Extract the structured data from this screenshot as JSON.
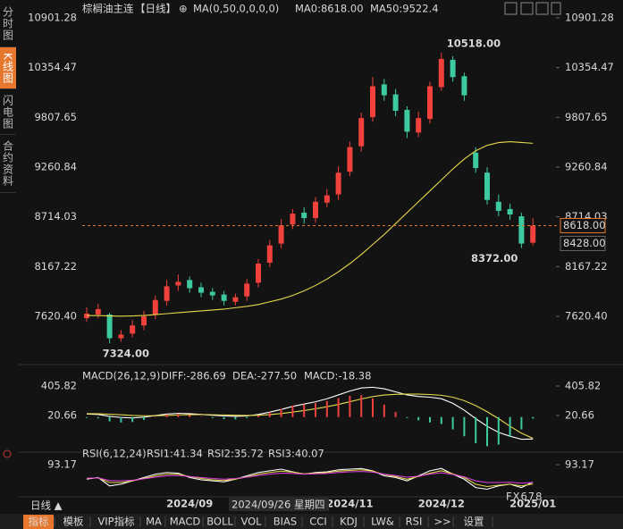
{
  "sidebar_tabs": [
    "分时图",
    "K线图",
    "闪电图",
    "合约资料"
  ],
  "chart_data": [
    {
      "type": "candlestick",
      "title": "棕榈油主连",
      "period": "【日线】",
      "subtitle": "MA(0,50,0,0,0,0)",
      "ma0_label": "MA0:8618.00",
      "categories": [
        null,
        null,
        null,
        null,
        null,
        null,
        null,
        null,
        null,
        "2024/09",
        null,
        null,
        null,
        null,
        null,
        null,
        null,
        null,
        null,
        null,
        null,
        null,
        null,
        "2024/11",
        null,
        null,
        null,
        null,
        null,
        null,
        null,
        "2024/12",
        null,
        null,
        null,
        null,
        null,
        null,
        null,
        "2025/01"
      ],
      "open": [
        7600,
        7640,
        7640,
        7380,
        7430,
        7520,
        7640,
        7790,
        7960,
        8020,
        7940,
        7890,
        7860,
        7780,
        7840,
        7990,
        8210,
        8420,
        8630,
        8760,
        8700,
        8870,
        8960,
        9210,
        9490,
        9810,
        10170,
        10060,
        9890,
        9640,
        9790,
        10140,
        10440,
        10260,
        9420,
        9200,
        8880,
        8800,
        8720,
        8430
      ],
      "high": [
        7720,
        7760,
        7660,
        7470,
        7580,
        7680,
        7850,
        8020,
        8080,
        8060,
        7990,
        7930,
        7900,
        7870,
        8030,
        8250,
        8460,
        8690,
        8800,
        8820,
        8930,
        9020,
        9270,
        9540,
        9860,
        10250,
        10230,
        10120,
        9930,
        9870,
        10200,
        10518,
        10480,
        10300,
        9480,
        9260,
        8960,
        8860,
        8760,
        8700
      ],
      "low": [
        7560,
        7600,
        7324,
        7340,
        7390,
        7470,
        7590,
        7740,
        7900,
        7880,
        7830,
        7800,
        7740,
        7740,
        7790,
        7940,
        8160,
        8370,
        8580,
        8640,
        8650,
        8820,
        8900,
        9160,
        9430,
        9760,
        9990,
        9820,
        9580,
        9590,
        9740,
        10100,
        10200,
        9990,
        9200,
        8850,
        8720,
        8680,
        8372,
        8400
      ],
      "close": [
        7650,
        7700,
        7380,
        7420,
        7520,
        7620,
        7800,
        7950,
        8000,
        7930,
        7880,
        7850,
        7790,
        7830,
        7980,
        8200,
        8400,
        8620,
        8750,
        8700,
        8880,
        8950,
        9200,
        9480,
        9800,
        10150,
        10050,
        9880,
        9650,
        9800,
        10150,
        10450,
        10250,
        10050,
        9250,
        8900,
        8780,
        8740,
        8420,
        8618
      ],
      "up_color": "#f0413c",
      "down_color": "#3dcaa0",
      "series": [
        {
          "name": "MA50:9522.4",
          "color": "#e6d84a",
          "values": [
            7630,
            7628,
            7625,
            7622,
            7625,
            7630,
            7640,
            7650,
            7660,
            7670,
            7680,
            7690,
            7700,
            7715,
            7730,
            7750,
            7780,
            7810,
            7850,
            7900,
            7960,
            8030,
            8110,
            8200,
            8300,
            8410,
            8520,
            8640,
            8760,
            8880,
            9000,
            9120,
            9240,
            9350,
            9440,
            9500,
            9530,
            9540,
            9532,
            9522.4
          ]
        }
      ],
      "annotations": [
        "10518.00",
        "7324.00",
        "8372.00"
      ],
      "price_marker": {
        "value": 8618,
        "label": "8618.00",
        "color": "#e8772e"
      },
      "settle_label": "8428.00",
      "ylim": [
        7188.3,
        10901.28
      ],
      "yticks": [
        10901.28,
        10354.47,
        9807.65,
        9260.84,
        8714.03,
        8167.22,
        {
          "value": 7620.4,
          "label": "7620.40"
        }
      ]
    },
    {
      "type": "macd",
      "title": "MACD(26,12,9)",
      "series": [
        {
          "name": "DIFF:-286.69",
          "color": "#ffffff",
          "values": [
            40,
            35,
            10,
            -5,
            -10,
            0,
            20,
            40,
            50,
            45,
            35,
            25,
            15,
            10,
            15,
            35,
            65,
            100,
            140,
            170,
            200,
            240,
            290,
            340,
            380,
            390,
            370,
            330,
            290,
            270,
            260,
            240,
            180,
            90,
            -20,
            -120,
            -200,
            -250,
            -290,
            -286.69
          ]
        },
        {
          "name": "DEA:-277.50",
          "color": "#e6d84a",
          "values": [
            45,
            43,
            38,
            30,
            22,
            18,
            18,
            22,
            28,
            32,
            33,
            31,
            28,
            24,
            22,
            25,
            33,
            46,
            65,
            86,
            109,
            135,
            166,
            201,
            237,
            268,
            288,
            297,
            300,
            300,
            295,
            285,
            260,
            215,
            150,
            70,
            -20,
            -120,
            -210,
            -277.5
          ]
        },
        {
          "name": "MACD:-18.38",
          "color": "#e040e0",
          "type": "bar",
          "values": [
            -10,
            -16,
            -56,
            -70,
            -64,
            -36,
            4,
            36,
            44,
            26,
            4,
            -12,
            -26,
            -28,
            -14,
            20,
            64,
            108,
            150,
            168,
            182,
            210,
            248,
            278,
            286,
            244,
            164,
            66,
            -12,
            -42,
            -70,
            -90,
            -160,
            -250,
            -340,
            -380,
            -360,
            -260,
            -160,
            -18.38
          ]
        }
      ],
      "up_color": "#f0413c",
      "down_color": "#3dcaa0",
      "ylim": [
        -446,
        546
      ],
      "yticks": [
        405.82,
        20.66
      ]
    },
    {
      "type": "line",
      "title": "RSI(6,12,24)",
      "series": [
        {
          "name": "RSI1:41.34",
          "color": "#ffffff",
          "values": [
            50,
            55,
            30,
            35,
            45,
            55,
            65,
            70,
            68,
            55,
            48,
            45,
            42,
            50,
            60,
            70,
            75,
            80,
            72,
            65,
            70,
            72,
            78,
            80,
            82,
            75,
            60,
            55,
            45,
            60,
            75,
            82,
            65,
            50,
            25,
            20,
            30,
            35,
            25,
            41.34
          ]
        },
        {
          "name": "RSI2:35.72",
          "color": "#e6d84a",
          "values": [
            52,
            54,
            40,
            40,
            45,
            52,
            60,
            65,
            65,
            58,
            52,
            48,
            46,
            50,
            57,
            65,
            70,
            74,
            71,
            66,
            68,
            70,
            74,
            76,
            78,
            74,
            64,
            58,
            50,
            58,
            68,
            75,
            66,
            55,
            35,
            28,
            32,
            35,
            30,
            35.72
          ]
        },
        {
          "name": "RSI3:40.07",
          "color": "#e040e0",
          "values": [
            53,
            54,
            46,
            45,
            47,
            51,
            56,
            60,
            61,
            58,
            55,
            52,
            50,
            52,
            56,
            61,
            65,
            68,
            67,
            65,
            66,
            67,
            70,
            72,
            73,
            71,
            65,
            61,
            56,
            59,
            65,
            69,
            64,
            57,
            45,
            40,
            40,
            41,
            38,
            40.07
          ]
        }
      ],
      "ylim": [
        0,
        120
      ],
      "yticks": [
        93.17
      ]
    }
  ],
  "period_label": "日线 ▲",
  "cursor_label": "2024/09/26 星期四",
  "toolbar": [
    "指标",
    "模板",
    "VIP指标",
    "MA",
    "MACD",
    "BOLL",
    "VOL",
    "BIAS",
    "CCI",
    "KDJ",
    "LW&",
    "RSI",
    ">>",
    "设置"
  ],
  "watermark": "FX678"
}
